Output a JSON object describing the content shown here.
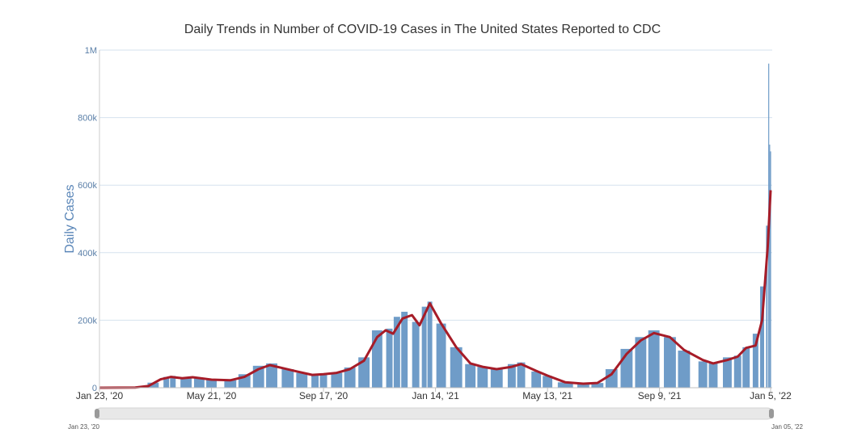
{
  "chart_data": {
    "type": "bar",
    "title": "Daily Trends in Number of COVID-19 Cases in The United States Reported to CDC",
    "ylabel": "Daily Cases",
    "xlabel": "",
    "ylim": [
      0,
      1000000
    ],
    "y_ticks": [
      {
        "value": 0,
        "label": "0"
      },
      {
        "value": 200000,
        "label": "200k"
      },
      {
        "value": 400000,
        "label": "400k"
      },
      {
        "value": 600000,
        "label": "600k"
      },
      {
        "value": 800000,
        "label": "800k"
      },
      {
        "value": 1000000,
        "label": "1M"
      }
    ],
    "x_range": [
      "2020-01-23",
      "2022-01-05"
    ],
    "x_ticks": [
      {
        "date": "2020-01-23",
        "label": "Jan 23, '20"
      },
      {
        "date": "2020-05-21",
        "label": "May 21, '20"
      },
      {
        "date": "2020-09-17",
        "label": "Sep 17, '20"
      },
      {
        "date": "2021-01-14",
        "label": "Jan 14, '21"
      },
      {
        "date": "2021-05-13",
        "label": "May 13, '21"
      },
      {
        "date": "2021-09-09",
        "label": "Sep 9, '21"
      },
      {
        "date": "2022-01-05",
        "label": "Jan 5, '22"
      }
    ],
    "grid": true,
    "bar_color": "#6f9cc8",
    "line_color": "#a61c28",
    "series": [
      {
        "type": "bar",
        "points": [
          [
            "2020-01-23",
            0
          ],
          [
            "2020-03-01",
            1000
          ],
          [
            "2020-03-20",
            15000
          ],
          [
            "2020-04-03",
            32000
          ],
          [
            "2020-04-10",
            35000
          ],
          [
            "2020-04-24",
            30000
          ],
          [
            "2020-05-08",
            28000
          ],
          [
            "2020-05-21",
            24000
          ],
          [
            "2020-06-10",
            22000
          ],
          [
            "2020-06-25",
            40000
          ],
          [
            "2020-07-10",
            65000
          ],
          [
            "2020-07-24",
            72000
          ],
          [
            "2020-08-10",
            55000
          ],
          [
            "2020-08-25",
            44000
          ],
          [
            "2020-09-08",
            36000
          ],
          [
            "2020-09-17",
            40000
          ],
          [
            "2020-10-01",
            44000
          ],
          [
            "2020-10-15",
            60000
          ],
          [
            "2020-10-30",
            90000
          ],
          [
            "2020-11-13",
            170000
          ],
          [
            "2020-11-26",
            175000
          ],
          [
            "2020-12-04",
            210000
          ],
          [
            "2020-12-12",
            225000
          ],
          [
            "2020-12-24",
            195000
          ],
          [
            "2021-01-02",
            240000
          ],
          [
            "2021-01-08",
            255000
          ],
          [
            "2021-01-20",
            190000
          ],
          [
            "2021-02-05",
            120000
          ],
          [
            "2021-02-20",
            70000
          ],
          [
            "2021-03-05",
            62000
          ],
          [
            "2021-03-20",
            55000
          ],
          [
            "2021-04-05",
            70000
          ],
          [
            "2021-04-15",
            75000
          ],
          [
            "2021-05-01",
            48000
          ],
          [
            "2021-05-13",
            35000
          ],
          [
            "2021-06-01",
            16000
          ],
          [
            "2021-06-20",
            11000
          ],
          [
            "2021-07-05",
            14000
          ],
          [
            "2021-07-20",
            55000
          ],
          [
            "2021-08-05",
            115000
          ],
          [
            "2021-08-20",
            150000
          ],
          [
            "2021-09-03",
            170000
          ],
          [
            "2021-09-20",
            150000
          ],
          [
            "2021-10-05",
            110000
          ],
          [
            "2021-10-25",
            78000
          ],
          [
            "2021-11-05",
            72000
          ],
          [
            "2021-11-20",
            90000
          ],
          [
            "2021-12-01",
            95000
          ],
          [
            "2021-12-10",
            120000
          ],
          [
            "2021-12-20",
            160000
          ],
          [
            "2021-12-27",
            300000
          ],
          [
            "2022-01-01",
            480000
          ],
          [
            "2022-01-03",
            960000
          ],
          [
            "2022-01-04",
            720000
          ],
          [
            "2022-01-05",
            700000
          ]
        ]
      },
      {
        "type": "line",
        "name": "",
        "points": [
          [
            "2020-01-23",
            0
          ],
          [
            "2020-03-01",
            500
          ],
          [
            "2020-03-15",
            5000
          ],
          [
            "2020-03-28",
            25000
          ],
          [
            "2020-04-08",
            32000
          ],
          [
            "2020-04-20",
            28000
          ],
          [
            "2020-05-01",
            31000
          ],
          [
            "2020-05-21",
            24000
          ],
          [
            "2020-06-10",
            22000
          ],
          [
            "2020-06-25",
            32000
          ],
          [
            "2020-07-10",
            55000
          ],
          [
            "2020-07-22",
            67000
          ],
          [
            "2020-08-05",
            58000
          ],
          [
            "2020-08-20",
            48000
          ],
          [
            "2020-09-05",
            38000
          ],
          [
            "2020-09-17",
            40000
          ],
          [
            "2020-10-01",
            44000
          ],
          [
            "2020-10-15",
            55000
          ],
          [
            "2020-10-30",
            80000
          ],
          [
            "2020-11-13",
            150000
          ],
          [
            "2020-11-22",
            170000
          ],
          [
            "2020-11-30",
            160000
          ],
          [
            "2020-12-10",
            205000
          ],
          [
            "2020-12-20",
            215000
          ],
          [
            "2020-12-28",
            185000
          ],
          [
            "2021-01-08",
            250000
          ],
          [
            "2021-01-20",
            190000
          ],
          [
            "2021-02-05",
            120000
          ],
          [
            "2021-02-20",
            72000
          ],
          [
            "2021-03-05",
            62000
          ],
          [
            "2021-03-20",
            55000
          ],
          [
            "2021-04-05",
            62000
          ],
          [
            "2021-04-15",
            70000
          ],
          [
            "2021-05-01",
            50000
          ],
          [
            "2021-05-13",
            36000
          ],
          [
            "2021-06-01",
            16000
          ],
          [
            "2021-06-20",
            12000
          ],
          [
            "2021-07-05",
            14000
          ],
          [
            "2021-07-20",
            40000
          ],
          [
            "2021-08-05",
            100000
          ],
          [
            "2021-08-20",
            140000
          ],
          [
            "2021-09-03",
            162000
          ],
          [
            "2021-09-20",
            150000
          ],
          [
            "2021-10-05",
            112000
          ],
          [
            "2021-10-25",
            82000
          ],
          [
            "2021-11-05",
            72000
          ],
          [
            "2021-11-20",
            82000
          ],
          [
            "2021-12-01",
            92000
          ],
          [
            "2021-12-10",
            118000
          ],
          [
            "2021-12-20",
            125000
          ],
          [
            "2021-12-27",
            200000
          ],
          [
            "2022-01-02",
            420000
          ],
          [
            "2022-01-05",
            585000
          ]
        ]
      }
    ]
  },
  "navigator": {
    "start_label": "Jan 23, '20",
    "end_label": "Jan 05, '22"
  }
}
